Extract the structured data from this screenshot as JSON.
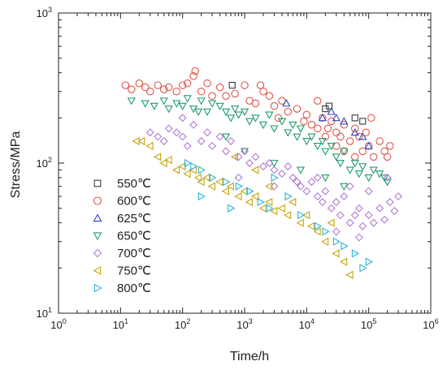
{
  "chart_data": {
    "type": "scatter",
    "xlabel": "Time/h",
    "ylabel": "Stress/MPa",
    "xscale": "log",
    "yscale": "log",
    "xlim": [
      1,
      1000000
    ],
    "ylim": [
      10,
      1000
    ],
    "x_ticks": [
      {
        "base": "10",
        "exp": "0"
      },
      {
        "base": "10",
        "exp": "1"
      },
      {
        "base": "10",
        "exp": "2"
      },
      {
        "base": "10",
        "exp": "3"
      },
      {
        "base": "10",
        "exp": "4"
      },
      {
        "base": "10",
        "exp": "5"
      },
      {
        "base": "10",
        "exp": "6"
      }
    ],
    "y_ticks": [
      {
        "base": "10",
        "exp": "1"
      },
      {
        "base": "10",
        "exp": "2"
      },
      {
        "base": "10",
        "exp": "3"
      }
    ],
    "grid": false,
    "legend_position": "left",
    "series": [
      {
        "name": "550℃",
        "marker": "square",
        "color": "#3a3a3a",
        "points": [
          [
            630,
            330
          ],
          [
            20000,
            230
          ],
          [
            23000,
            240
          ],
          [
            60000,
            200
          ],
          [
            80000,
            190
          ]
        ]
      },
      {
        "name": "600℃",
        "marker": "circle",
        "color": "#e0554a",
        "points": [
          [
            12,
            330
          ],
          [
            15,
            310
          ],
          [
            20,
            340
          ],
          [
            25,
            320
          ],
          [
            30,
            300
          ],
          [
            40,
            330
          ],
          [
            50,
            310
          ],
          [
            60,
            320
          ],
          [
            80,
            300
          ],
          [
            100,
            330
          ],
          [
            120,
            340
          ],
          [
            150,
            380
          ],
          [
            160,
            410
          ],
          [
            200,
            300
          ],
          [
            250,
            340
          ],
          [
            300,
            280
          ],
          [
            400,
            320
          ],
          [
            500,
            280
          ],
          [
            700,
            290
          ],
          [
            1000,
            330
          ],
          [
            1200,
            260
          ],
          [
            1500,
            250
          ],
          [
            1800,
            330
          ],
          [
            2000,
            300
          ],
          [
            2500,
            280
          ],
          [
            3000,
            240
          ],
          [
            3500,
            200
          ],
          [
            4000,
            260
          ],
          [
            5000,
            220
          ],
          [
            7000,
            230
          ],
          [
            9000,
            190
          ],
          [
            10000,
            210
          ],
          [
            12000,
            180
          ],
          [
            15000,
            260
          ],
          [
            15000,
            170
          ],
          [
            18000,
            200
          ],
          [
            20000,
            150
          ],
          [
            22000,
            170
          ],
          [
            25000,
            190
          ],
          [
            30000,
            130
          ],
          [
            30000,
            160
          ],
          [
            35000,
            150
          ],
          [
            40000,
            180
          ],
          [
            40000,
            120
          ],
          [
            50000,
            140
          ],
          [
            60000,
            170
          ],
          [
            60000,
            110
          ],
          [
            70000,
            150
          ],
          [
            80000,
            120
          ],
          [
            90000,
            160
          ],
          [
            100000,
            130
          ],
          [
            110000,
            200
          ],
          [
            120000,
            110
          ],
          [
            150000,
            140
          ],
          [
            180000,
            120
          ],
          [
            200000,
            110
          ],
          [
            220000,
            130
          ]
        ]
      },
      {
        "name": "625℃",
        "marker": "triangle-up",
        "color": "#2f49c4",
        "points": [
          [
            4700,
            250
          ],
          [
            18000,
            200
          ],
          [
            25000,
            220
          ],
          [
            30000,
            200
          ],
          [
            40000,
            190
          ],
          [
            60000,
            160
          ],
          [
            80000,
            150
          ],
          [
            100000,
            130
          ]
        ]
      },
      {
        "name": "650℃",
        "marker": "triangle-down",
        "color": "#1e9c6c",
        "points": [
          [
            15,
            260
          ],
          [
            25,
            250
          ],
          [
            35,
            240
          ],
          [
            50,
            260
          ],
          [
            60,
            230
          ],
          [
            80,
            250
          ],
          [
            100,
            240
          ],
          [
            120,
            270
          ],
          [
            150,
            230
          ],
          [
            180,
            220
          ],
          [
            200,
            260
          ],
          [
            250,
            220
          ],
          [
            300,
            250
          ],
          [
            400,
            240
          ],
          [
            500,
            220
          ],
          [
            600,
            200
          ],
          [
            700,
            230
          ],
          [
            800,
            210
          ],
          [
            1000,
            220
          ],
          [
            1200,
            190
          ],
          [
            1500,
            200
          ],
          [
            2000,
            180
          ],
          [
            2500,
            210
          ],
          [
            3000,
            170
          ],
          [
            4000,
            190
          ],
          [
            5000,
            160
          ],
          [
            6000,
            180
          ],
          [
            7000,
            150
          ],
          [
            8000,
            170
          ],
          [
            10000,
            140
          ],
          [
            12000,
            150
          ],
          [
            15000,
            130
          ],
          [
            18000,
            140
          ],
          [
            20000,
            120
          ],
          [
            25000,
            130
          ],
          [
            30000,
            110
          ],
          [
            35000,
            100
          ],
          [
            40000,
            120
          ],
          [
            50000,
            90
          ],
          [
            60000,
            100
          ],
          [
            70000,
            85
          ],
          [
            80000,
            95
          ],
          [
            100000,
            80
          ],
          [
            120000,
            90
          ],
          [
            150000,
            85
          ],
          [
            180000,
            80
          ],
          [
            200000,
            75
          ],
          [
            500,
            150
          ],
          [
            1000,
            120
          ],
          [
            3000,
            100
          ],
          [
            8000,
            90
          ],
          [
            20000,
            80
          ],
          [
            40000,
            70
          ]
        ]
      },
      {
        "name": "700℃",
        "marker": "diamond",
        "color": "#b07ad6",
        "points": [
          [
            30,
            160
          ],
          [
            40,
            150
          ],
          [
            50,
            140
          ],
          [
            60,
            170
          ],
          [
            80,
            160
          ],
          [
            100,
            150
          ],
          [
            100,
            200
          ],
          [
            120,
            130
          ],
          [
            150,
            180
          ],
          [
            200,
            140
          ],
          [
            250,
            160
          ],
          [
            300,
            130
          ],
          [
            400,
            150
          ],
          [
            500,
            120
          ],
          [
            600,
            140
          ],
          [
            800,
            110
          ],
          [
            1000,
            120
          ],
          [
            1200,
            100
          ],
          [
            1500,
            110
          ],
          [
            2000,
            95
          ],
          [
            2500,
            100
          ],
          [
            3000,
            90
          ],
          [
            4000,
            85
          ],
          [
            5000,
            95
          ],
          [
            6000,
            80
          ],
          [
            7000,
            75
          ],
          [
            8000,
            70
          ],
          [
            10000,
            65
          ],
          [
            12000,
            75
          ],
          [
            15000,
            60
          ],
          [
            18000,
            55
          ],
          [
            20000,
            65
          ],
          [
            25000,
            50
          ],
          [
            30000,
            55
          ],
          [
            35000,
            45
          ],
          [
            40000,
            60
          ],
          [
            50000,
            40
          ],
          [
            60000,
            45
          ],
          [
            70000,
            50
          ],
          [
            80000,
            38
          ],
          [
            100000,
            45
          ],
          [
            120000,
            40
          ],
          [
            150000,
            50
          ],
          [
            180000,
            42
          ],
          [
            220000,
            55
          ],
          [
            260000,
            48
          ],
          [
            300000,
            60
          ],
          [
            800,
            80
          ],
          [
            3000,
            70
          ],
          [
            15000,
            80
          ],
          [
            50000,
            70
          ],
          [
            100000,
            65
          ],
          [
            200000,
            80
          ],
          [
            30000,
            35
          ],
          [
            70000,
            32
          ]
        ]
      },
      {
        "name": "750℃",
        "marker": "triangle-left",
        "color": "#c7a40a",
        "points": [
          [
            18,
            140
          ],
          [
            22,
            140
          ],
          [
            30,
            130
          ],
          [
            40,
            110
          ],
          [
            50,
            100
          ],
          [
            60,
            105
          ],
          [
            80,
            90
          ],
          [
            100,
            95
          ],
          [
            120,
            85
          ],
          [
            150,
            90
          ],
          [
            180,
            80
          ],
          [
            200,
            75
          ],
          [
            250,
            80
          ],
          [
            300,
            70
          ],
          [
            400,
            75
          ],
          [
            500,
            65
          ],
          [
            600,
            70
          ],
          [
            800,
            60
          ],
          [
            1000,
            65
          ],
          [
            1200,
            55
          ],
          [
            1500,
            60
          ],
          [
            2000,
            50
          ],
          [
            2500,
            55
          ],
          [
            3000,
            48
          ],
          [
            4000,
            50
          ],
          [
            5000,
            45
          ],
          [
            6000,
            55
          ],
          [
            8000,
            40
          ],
          [
            10000,
            45
          ],
          [
            12000,
            38
          ],
          [
            15000,
            35
          ],
          [
            20000,
            30
          ],
          [
            25000,
            40
          ],
          [
            30000,
            25
          ],
          [
            40000,
            22
          ],
          [
            50000,
            18
          ],
          [
            700,
            110
          ],
          [
            1500,
            90
          ],
          [
            2500,
            70
          ]
        ]
      },
      {
        "name": "800℃",
        "marker": "triangle-right",
        "color": "#2bb5d8",
        "points": [
          [
            120,
            100
          ],
          [
            150,
            95
          ],
          [
            200,
            90
          ],
          [
            300,
            80
          ],
          [
            500,
            75
          ],
          [
            800,
            70
          ],
          [
            1200,
            65
          ],
          [
            1800,
            55
          ],
          [
            2500,
            50
          ],
          [
            3000,
            80
          ],
          [
            5000,
            60
          ],
          [
            8000,
            45
          ],
          [
            15000,
            38
          ],
          [
            20000,
            35
          ],
          [
            30000,
            30
          ],
          [
            40000,
            28
          ],
          [
            60000,
            25
          ],
          [
            80000,
            20
          ],
          [
            100000,
            22
          ],
          [
            200,
            60
          ],
          [
            600,
            50
          ]
        ]
      }
    ]
  }
}
